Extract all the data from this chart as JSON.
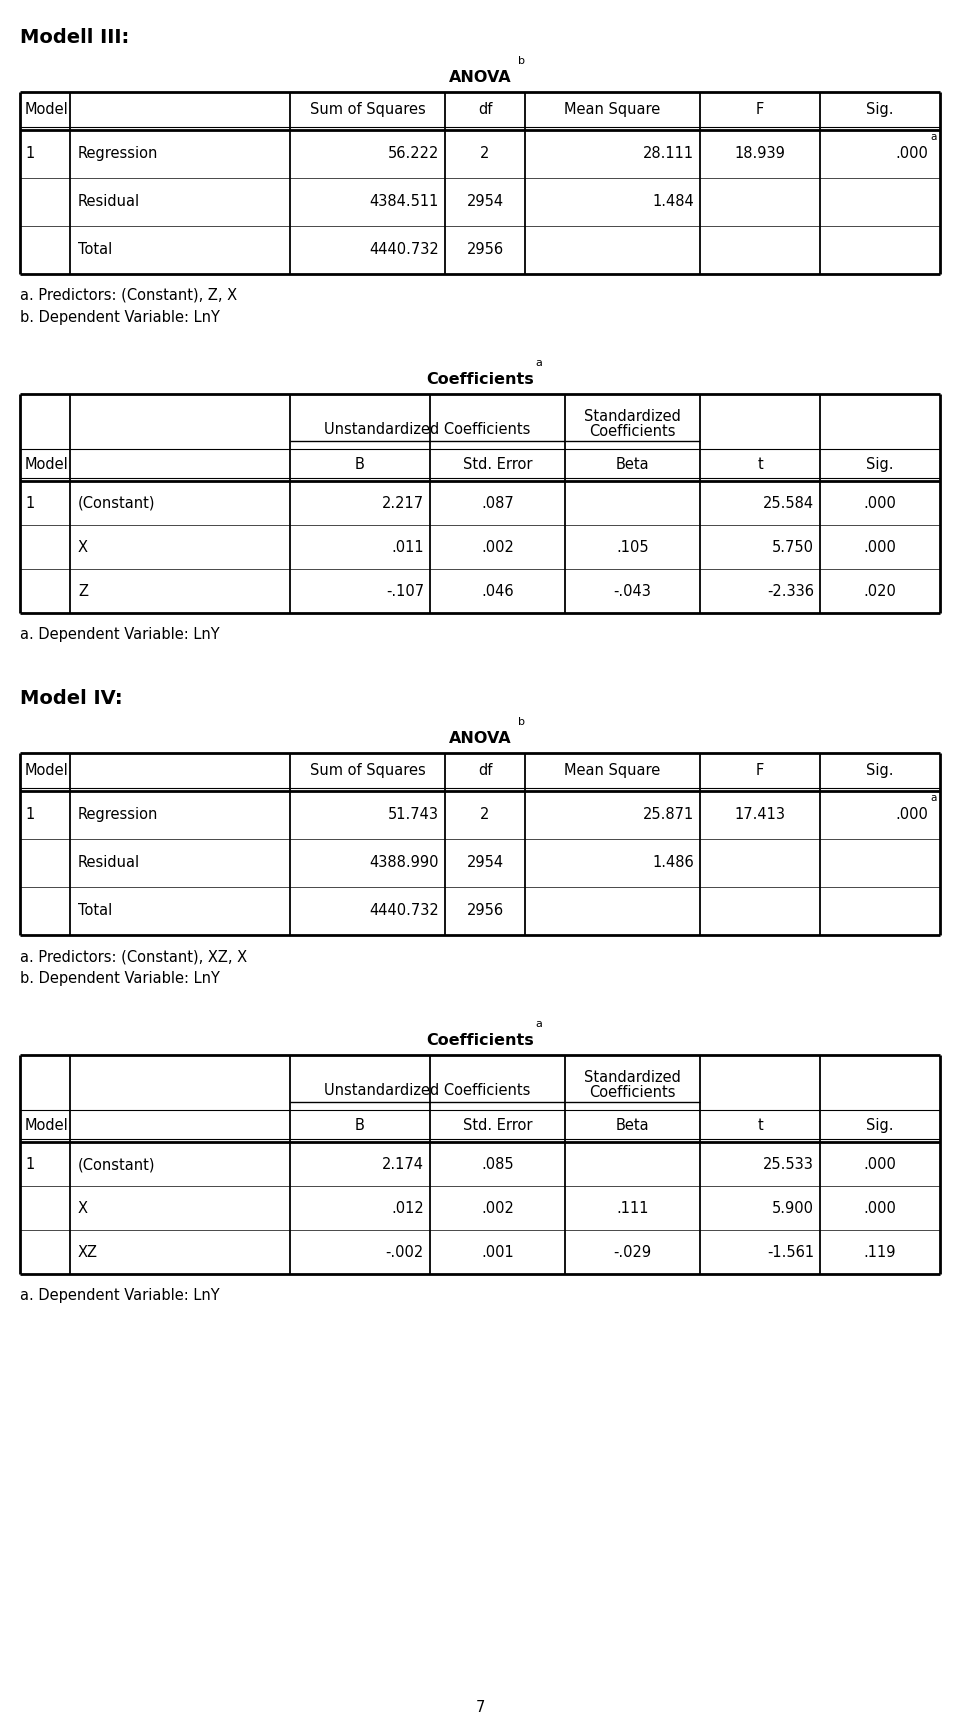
{
  "page_number": "7",
  "modell3": {
    "title": "Modell III:",
    "anova_title": "ANOVA",
    "anova_sup": "b",
    "anova_rows": [
      [
        "1",
        "Regression",
        "56.222",
        "2",
        "28.111",
        "18.939",
        ".000",
        "a"
      ],
      [
        "",
        "Residual",
        "4384.511",
        "2954",
        "1.484",
        "",
        "",
        ""
      ],
      [
        "",
        "Total",
        "4440.732",
        "2956",
        "",
        "",
        "",
        ""
      ]
    ],
    "anova_fn": [
      "a. Predictors: (Constant), Z, X",
      "b. Dependent Variable: LnY"
    ],
    "coeff_title": "Coefficients",
    "coeff_sup": "a",
    "coeff_rows": [
      [
        "1",
        "(Constant)",
        "2.217",
        ".087",
        "",
        "25.584",
        ".000"
      ],
      [
        "",
        "X",
        ".011",
        ".002",
        ".105",
        "5.750",
        ".000"
      ],
      [
        "",
        "Z",
        "-.107",
        ".046",
        "-.043",
        "-2.336",
        ".020"
      ]
    ],
    "coeff_fn": [
      "a. Dependent Variable: LnY"
    ]
  },
  "modell4": {
    "title": "Model IV:",
    "anova_title": "ANOVA",
    "anova_sup": "b",
    "anova_rows": [
      [
        "1",
        "Regression",
        "51.743",
        "2",
        "25.871",
        "17.413",
        ".000",
        "a"
      ],
      [
        "",
        "Residual",
        "4388.990",
        "2954",
        "1.486",
        "",
        "",
        ""
      ],
      [
        "",
        "Total",
        "4440.732",
        "2956",
        "",
        "",
        "",
        ""
      ]
    ],
    "anova_fn": [
      "a. Predictors: (Constant), XZ, X",
      "b. Dependent Variable: LnY"
    ],
    "coeff_title": "Coefficients",
    "coeff_sup": "a",
    "coeff_rows": [
      [
        "1",
        "(Constant)",
        "2.174",
        ".085",
        "",
        "25.533",
        ".000"
      ],
      [
        "",
        "X",
        ".012",
        ".002",
        ".111",
        "5.900",
        ".000"
      ],
      [
        "",
        "XZ",
        "-.002",
        ".001",
        "-.029",
        "-1.561",
        ".119"
      ]
    ],
    "coeff_fn": [
      "a. Dependent Variable: LnY"
    ]
  },
  "bg": "#ffffff",
  "fg": "#000000"
}
